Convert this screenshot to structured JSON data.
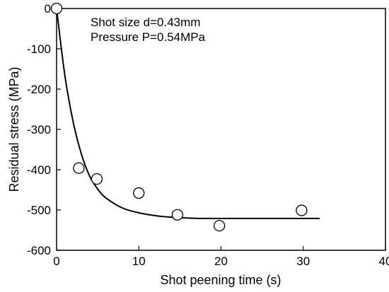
{
  "chart_data": {
    "type": "scatter",
    "xlabel": "Shot peening time (s)",
    "ylabel": "Residual stress (MPa)",
    "xlim": [
      0,
      40
    ],
    "ylim": [
      -600,
      0
    ],
    "x_ticks": [
      0,
      10,
      20,
      30,
      40
    ],
    "y_ticks": [
      0,
      -100,
      -200,
      -300,
      -400,
      -500,
      -600
    ],
    "x_tick_labels": [
      "0",
      "10",
      "20",
      "30",
      "40"
    ],
    "y_tick_labels": [
      "0",
      "-100",
      "-200",
      "-300",
      "-400",
      "-500",
      "-600"
    ],
    "annotations": [
      "Shot size d=0.43mm",
      "Pressure P=0.54MPa"
    ],
    "grid": false,
    "series": [
      {
        "type": "scatter",
        "marker": "open-circle",
        "points": [
          {
            "x": 0,
            "y": 0
          },
          {
            "x": 2.7,
            "y": -396
          },
          {
            "x": 4.9,
            "y": -423
          },
          {
            "x": 10.0,
            "y": -458
          },
          {
            "x": 14.7,
            "y": -512
          },
          {
            "x": 19.8,
            "y": -539
          },
          {
            "x": 29.8,
            "y": -501
          }
        ]
      },
      {
        "type": "line",
        "smooth": true,
        "points": [
          {
            "x": 0,
            "y": 0
          },
          {
            "x": 1,
            "y": -165
          },
          {
            "x": 2,
            "y": -280
          },
          {
            "x": 3,
            "y": -360
          },
          {
            "x": 4,
            "y": -415
          },
          {
            "x": 5,
            "y": -448
          },
          {
            "x": 6,
            "y": -470
          },
          {
            "x": 8,
            "y": -495
          },
          {
            "x": 10,
            "y": -507
          },
          {
            "x": 12,
            "y": -514
          },
          {
            "x": 14,
            "y": -518
          },
          {
            "x": 16,
            "y": -520
          },
          {
            "x": 18,
            "y": -521
          },
          {
            "x": 22,
            "y": -521
          },
          {
            "x": 26,
            "y": -521
          },
          {
            "x": 32,
            "y": -521
          }
        ]
      }
    ]
  }
}
